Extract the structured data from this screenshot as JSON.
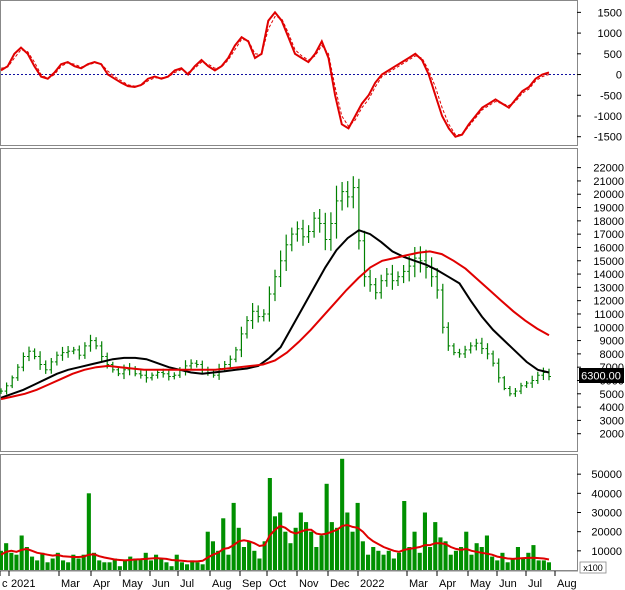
{
  "chart_data": [
    {
      "panel": "oscillator",
      "type": "line",
      "ylim": [
        -1700,
        1750
      ],
      "yticks": [
        1500,
        1000,
        500,
        0,
        -500,
        -1000,
        -1500
      ],
      "zero_line": 0,
      "series": [
        {
          "color": "#e00000",
          "values": [
            100,
            200,
            500,
            650,
            500,
            200,
            -50,
            -100,
            50,
            250,
            300,
            200,
            150,
            250,
            300,
            250,
            0,
            -100,
            -200,
            -280,
            -300,
            -250,
            -100,
            -50,
            -100,
            -50,
            100,
            150,
            0,
            200,
            350,
            200,
            100,
            200,
            400,
            700,
            900,
            800,
            400,
            500,
            1300,
            1500,
            1300,
            900,
            500,
            400,
            300,
            500,
            800,
            400,
            -500,
            -1200,
            -1300,
            -1000,
            -700,
            -500,
            -200,
            0,
            100,
            200,
            300,
            400,
            500,
            350,
            0,
            -500,
            -1000,
            -1300,
            -1500,
            -1450,
            -1200,
            -1000,
            -800,
            -700,
            -600,
            -700,
            -800,
            -600,
            -400,
            -300,
            -100,
            0,
            50
          ]
        },
        {
          "color": "#e00000",
          "dashed": true,
          "values": [
            150,
            180,
            400,
            600,
            550,
            300,
            0,
            -100,
            0,
            200,
            280,
            250,
            180,
            230,
            280,
            260,
            80,
            -50,
            -150,
            -250,
            -280,
            -270,
            -150,
            -80,
            -80,
            -60,
            50,
            120,
            50,
            150,
            300,
            250,
            150,
            180,
            350,
            600,
            850,
            820,
            500,
            480,
            1100,
            1400,
            1350,
            1000,
            600,
            450,
            350,
            450,
            700,
            500,
            -300,
            -1000,
            -1250,
            -1100,
            -800,
            -600,
            -300,
            -50,
            50,
            150,
            250,
            350,
            450,
            400,
            100,
            -300,
            -800,
            -1200,
            -1450,
            -1450,
            -1250,
            -1050,
            -850,
            -750,
            -650,
            -700,
            -750,
            -650,
            -450,
            -350,
            -150,
            -50,
            0
          ]
        }
      ]
    },
    {
      "panel": "price",
      "type": "line",
      "ylim": [
        700,
        23400
      ],
      "yticks": [
        22000,
        21000,
        20000,
        19000,
        18000,
        17000,
        16000,
        15000,
        14000,
        13000,
        12000,
        11000,
        10000,
        9000,
        8000,
        7000,
        6000,
        5000,
        4000,
        3000,
        2000
      ],
      "last_price_label": "6300.00",
      "series": [
        {
          "name": "",
          "type": "ohlc",
          "values": [
            5200,
            5600,
            6200,
            7000,
            7800,
            8200,
            7800,
            7200,
            6800,
            7400,
            7900,
            8100,
            8200,
            8300,
            7900,
            8600,
            9000,
            8600,
            7800,
            7200,
            6800,
            6500,
            6800,
            6900,
            6500,
            6400,
            6200,
            6400,
            6600,
            6500,
            6300,
            6400,
            6800,
            7100,
            7300,
            7200,
            6800,
            6600,
            6400,
            6900,
            7200,
            7600,
            8300,
            9500,
            10500,
            11200,
            10800,
            11000,
            12500,
            13800,
            15000,
            16200,
            17000,
            17400,
            16800,
            17200,
            18200,
            17800,
            16600,
            17800,
            19500,
            20200,
            19800,
            20500,
            16500,
            13800,
            13200,
            12600,
            13500,
            14000,
            13500,
            13800,
            14200,
            14600,
            15200,
            15000,
            14500,
            13800,
            12800,
            10000,
            8600,
            8100,
            8000,
            8300,
            8600,
            8800,
            8400,
            8000,
            7300,
            6200,
            5400,
            5000,
            5200,
            5600,
            5800,
            6000,
            6400,
            6600,
            6300
          ]
        },
        {
          "name": "",
          "color": "#000000",
          "values": [
            4700,
            5000,
            5300,
            5700,
            6100,
            6500,
            6800,
            7000,
            7200,
            7400,
            7600,
            7700,
            7700,
            7600,
            7300,
            7000,
            6800,
            6600,
            6500,
            6600,
            6700,
            6800,
            6900,
            7100,
            7700,
            8500,
            10000,
            11500,
            13000,
            14500,
            15800,
            16700,
            17300,
            17000,
            16400,
            15700,
            15300,
            15000,
            14700,
            14300,
            13800,
            13300,
            12000,
            10800,
            9800,
            9000,
            8200,
            7400,
            6800,
            6600
          ]
        },
        {
          "name": "",
          "color": "#e00000",
          "values": [
            4600,
            4800,
            5000,
            5300,
            5700,
            6100,
            6500,
            6800,
            7000,
            7100,
            7000,
            6900,
            6800,
            6800,
            6800,
            6800,
            6800,
            6800,
            6800,
            6900,
            7000,
            7100,
            7200,
            7500,
            8100,
            8900,
            9800,
            10800,
            11800,
            12800,
            13700,
            14500,
            15000,
            15200,
            15400,
            15600,
            15700,
            15500,
            15000,
            14400,
            13600,
            12800,
            12000,
            11200,
            10500,
            9900,
            9400
          ]
        }
      ]
    },
    {
      "panel": "volume",
      "type": "bar",
      "ylim": [
        0,
        60000
      ],
      "yticks": [
        50000,
        40000,
        30000,
        20000,
        10000
      ],
      "unit_label": "x100",
      "values": [
        10000,
        14000,
        9000,
        8000,
        18000,
        12000,
        7000,
        5000,
        9000,
        4000,
        6000,
        9000,
        5000,
        4000,
        8000,
        6000,
        8000,
        40000,
        9000,
        5000,
        4000,
        4000,
        6000,
        2000,
        5000,
        7000,
        6000,
        6000,
        9000,
        5000,
        8000,
        6000,
        4000,
        2000,
        8000,
        4000,
        3000,
        5000,
        4000,
        3000,
        20000,
        15000,
        10000,
        27000,
        8000,
        35000,
        22000,
        12000,
        15000,
        10000,
        6000,
        15000,
        48000,
        28000,
        30000,
        20000,
        14000,
        22000,
        30000,
        25000,
        20000,
        12000,
        18000,
        45000,
        25000,
        22000,
        58000,
        30000,
        20000,
        35000,
        15000,
        8000,
        12000,
        10000,
        8000,
        10000,
        6000,
        9000,
        36000,
        12000,
        20000,
        9000,
        30000,
        12000,
        25000,
        17000,
        15000,
        8000,
        10000,
        12000,
        20000,
        8000,
        14000,
        12000,
        18000,
        7000,
        5000,
        9000,
        4000,
        6000,
        12000,
        6000,
        9000,
        13000,
        5000,
        5000,
        4000
      ],
      "ma": [
        8000,
        9500,
        10000,
        9500,
        10500,
        11000,
        10000,
        9000,
        8500,
        8000,
        7500,
        7800,
        7200,
        7000,
        6800,
        6800,
        7000,
        8000,
        8200,
        7200,
        6500,
        6000,
        5500,
        5200,
        5000,
        5200,
        5500,
        5600,
        5800,
        6000,
        6200,
        6000,
        5800,
        5200,
        5000,
        4800,
        4600,
        4500,
        4500,
        4800,
        6500,
        8000,
        9000,
        11000,
        11500,
        13000,
        15000,
        15500,
        15000,
        14000,
        12500,
        13000,
        18000,
        21000,
        23000,
        22000,
        20000,
        19000,
        20000,
        21000,
        21000,
        19000,
        18500,
        19000,
        20000,
        21000,
        23000,
        23500,
        22500,
        22000,
        20000,
        17000,
        15000,
        13500,
        12000,
        11000,
        10000,
        9500,
        10500,
        11000,
        11500,
        12000,
        13000,
        13000,
        14000,
        14000,
        13500,
        12000,
        11000,
        10500,
        11000,
        10000,
        9500,
        9000,
        8500,
        8000,
        7000,
        6500,
        6000,
        5800,
        6000,
        6200,
        6300,
        6400,
        6200,
        6000,
        5500
      ]
    }
  ],
  "x_axis": {
    "labels": [
      "c",
      "2021",
      "Mar",
      "Apr",
      "May",
      "Jun",
      "Jul",
      "Aug",
      "Sep",
      "Oct",
      "Nov",
      "Dec",
      "2022",
      "Mar",
      "Apr",
      "May",
      "Jun",
      "Jul",
      "Aug"
    ]
  }
}
